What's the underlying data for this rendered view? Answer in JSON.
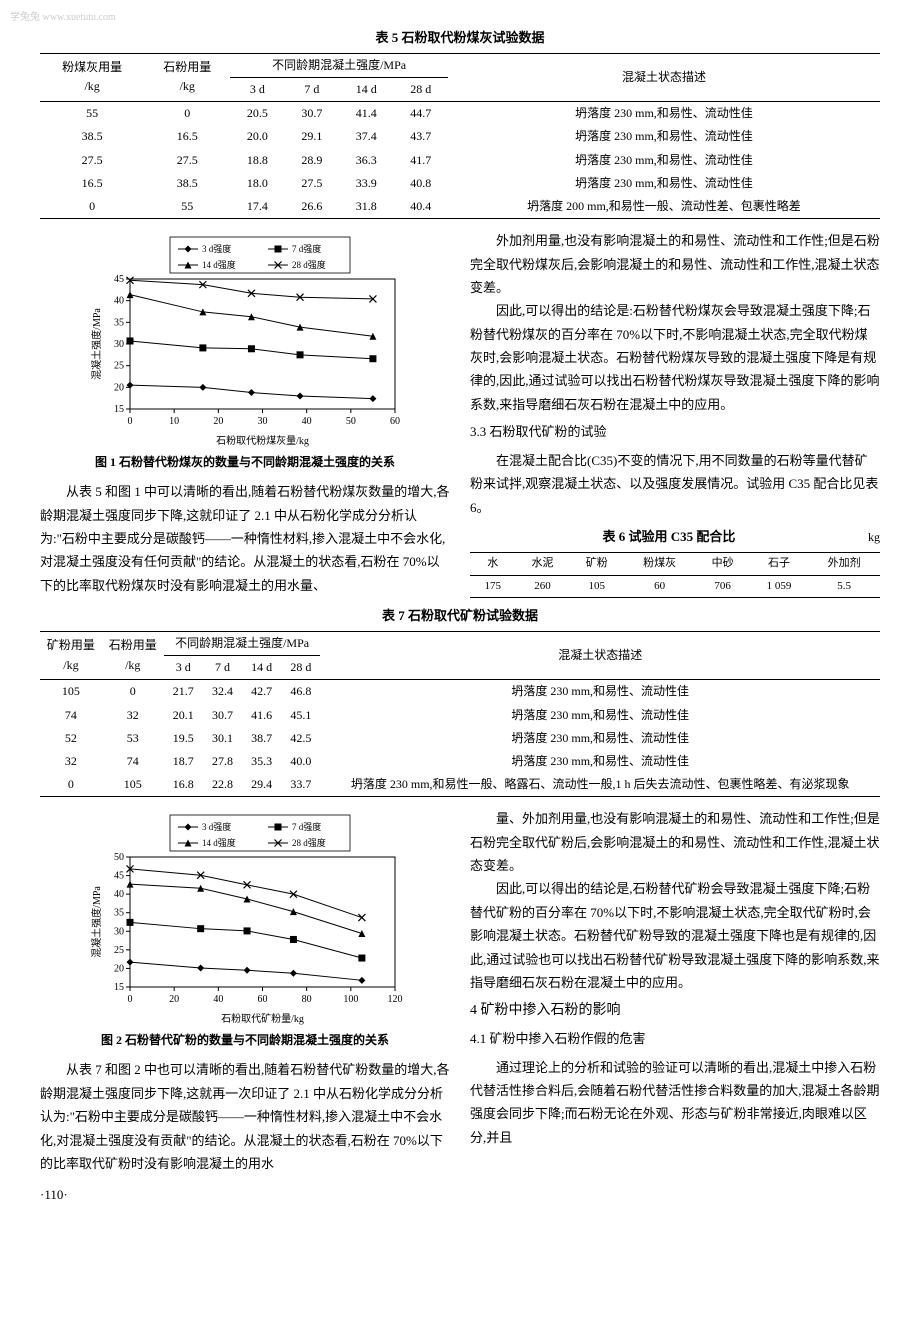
{
  "watermark": "学兔兔 www.xuetutu.com",
  "table5": {
    "title": "表 5  石粉取代粉煤灰试验数据",
    "head": {
      "c1": "粉煤灰用量\n/kg",
      "c2": "石粉用量\n/kg",
      "group": "不同龄期混凝土强度/MPa",
      "sub": [
        "3 d",
        "7 d",
        "14 d",
        "28 d"
      ],
      "c7": "混凝土状态描述"
    },
    "rows": [
      [
        "55",
        "0",
        "20.5",
        "30.7",
        "41.4",
        "44.7",
        "坍落度 230 mm,和易性、流动性佳"
      ],
      [
        "38.5",
        "16.5",
        "20.0",
        "29.1",
        "37.4",
        "43.7",
        "坍落度 230 mm,和易性、流动性佳"
      ],
      [
        "27.5",
        "27.5",
        "18.8",
        "28.9",
        "36.3",
        "41.7",
        "坍落度 230 mm,和易性、流动性佳"
      ],
      [
        "16.5",
        "38.5",
        "18.0",
        "27.5",
        "33.9",
        "40.8",
        "坍落度 230 mm,和易性、流动性佳"
      ],
      [
        "0",
        "55",
        "17.4",
        "26.6",
        "31.8",
        "40.4",
        "坍落度 200 mm,和易性一般、流动性差、包裹性略差"
      ]
    ]
  },
  "fig1": {
    "type": "line",
    "caption": "图 1  石粉替代粉煤灰的数量与不同龄期混凝土强度的关系",
    "xlabel": "石粉取代粉煤灰量/kg",
    "ylabel": "混凝土强度/MPa",
    "xlim": [
      0,
      60
    ],
    "ylim": [
      15,
      45
    ],
    "xtick_step": 10,
    "ytick_step": 5,
    "x_values": [
      0,
      16.5,
      27.5,
      38.5,
      55
    ],
    "legend_labels": [
      "3 d强度",
      "7 d强度",
      "14 d强度",
      "28 d强度"
    ],
    "series": [
      {
        "label": "3 d强度",
        "marker": "diamond",
        "y": [
          20.5,
          20.0,
          18.8,
          18.0,
          17.4
        ]
      },
      {
        "label": "7 d强度",
        "marker": "square",
        "y": [
          30.7,
          29.1,
          28.9,
          27.5,
          26.6
        ]
      },
      {
        "label": "14 d强度",
        "marker": "triangle",
        "y": [
          41.4,
          37.4,
          36.3,
          33.9,
          31.8
        ]
      },
      {
        "label": "28 d强度",
        "marker": "x",
        "y": [
          44.7,
          43.7,
          41.7,
          40.8,
          40.4
        ]
      }
    ],
    "line_color": "#000",
    "bg": "#fff",
    "font_size": 10
  },
  "para_left_1": "从表 5 和图 1 中可以清晰的看出,随着石粉替代粉煤灰数量的增大,各龄期混凝土强度同步下降,这就印证了 2.1 中从石粉化学成分分析认为:\"石粉中主要成分是碳酸钙——一种惰性材料,掺入混凝土中不会水化,对混凝土强度没有任何贡献\"的结论。从混凝土的状态看,石粉在 70%以下的比率取代粉煤灰时没有影响混凝土的用水量、",
  "para_right_1": "外加剂用量,也没有影响混凝土的和易性、流动性和工作性;但是石粉完全取代粉煤灰后,会影响混凝土的和易性、流动性和工作性,混凝土状态变差。",
  "para_right_2": "因此,可以得出的结论是:石粉替代粉煤灰会导致混凝土强度下降;石粉替代粉煤灰的百分率在 70%以下时,不影响混凝土状态,完全取代粉煤灰时,会影响混凝土状态。石粉替代粉煤灰导致的混凝土强度下降是有规律的,因此,通过试验可以找出石粉替代粉煤灰导致混凝土强度下降的影响系数,来指导磨细石灰石粉在混凝土中的应用。",
  "sec3_3": "3.3  石粉取代矿粉的试验",
  "para_right_3": "在混凝土配合比(C35)不变的情况下,用不同数量的石粉等量代替矿粉来试拌,观察混凝土状态、以及强度发展情况。试验用 C35 配合比见表 6。",
  "table6": {
    "title": "表 6  试验用 C35 配合比",
    "unit": "kg",
    "head": [
      "水",
      "水泥",
      "矿粉",
      "粉煤灰",
      "中砂",
      "石子",
      "外加剂"
    ],
    "row": [
      "175",
      "260",
      "105",
      "60",
      "706",
      "1 059",
      "5.5"
    ]
  },
  "table7": {
    "title": "表 7  石粉取代矿粉试验数据",
    "head": {
      "c1": "矿粉用量\n/kg",
      "c2": "石粉用量\n/kg",
      "group": "不同龄期混凝土强度/MPa",
      "sub": [
        "3 d",
        "7 d",
        "14 d",
        "28 d"
      ],
      "c7": "混凝土状态描述"
    },
    "rows": [
      [
        "105",
        "0",
        "21.7",
        "32.4",
        "42.7",
        "46.8",
        "坍落度 230 mm,和易性、流动性佳"
      ],
      [
        "74",
        "32",
        "20.1",
        "30.7",
        "41.6",
        "45.1",
        "坍落度 230 mm,和易性、流动性佳"
      ],
      [
        "52",
        "53",
        "19.5",
        "30.1",
        "38.7",
        "42.5",
        "坍落度 230 mm,和易性、流动性佳"
      ],
      [
        "32",
        "74",
        "18.7",
        "27.8",
        "35.3",
        "40.0",
        "坍落度 230 mm,和易性、流动性佳"
      ],
      [
        "0",
        "105",
        "16.8",
        "22.8",
        "29.4",
        "33.7",
        "坍落度 230 mm,和易性一般、略露石、流动性一般,1 h 后失去流动性、包裹性略差、有泌浆现象"
      ]
    ]
  },
  "fig2": {
    "type": "line",
    "caption": "图 2  石粉替代矿粉的数量与不同龄期混凝土强度的关系",
    "xlabel": "石粉取代矿粉量/kg",
    "ylabel": "混凝土强度/MPa",
    "xlim": [
      0,
      120
    ],
    "ylim": [
      15,
      50
    ],
    "xtick_step": 20,
    "ytick_step": 5,
    "x_values": [
      0,
      32,
      53,
      74,
      105
    ],
    "legend_labels": [
      "3 d强度",
      "7 d强度",
      "14 d强度",
      "28 d强度"
    ],
    "series": [
      {
        "label": "3 d强度",
        "marker": "diamond",
        "y": [
          21.7,
          20.1,
          19.5,
          18.7,
          16.8
        ]
      },
      {
        "label": "7 d强度",
        "marker": "square",
        "y": [
          32.4,
          30.7,
          30.1,
          27.8,
          22.8
        ]
      },
      {
        "label": "14 d强度",
        "marker": "triangle",
        "y": [
          42.7,
          41.6,
          38.7,
          35.3,
          29.4
        ]
      },
      {
        "label": "28 d强度",
        "marker": "x",
        "y": [
          46.8,
          45.1,
          42.5,
          40.0,
          33.7
        ]
      }
    ],
    "line_color": "#000",
    "bg": "#fff",
    "font_size": 10
  },
  "para_left_2": "从表 7 和图 2 中也可以清晰的看出,随着石粉替代矿粉数量的增大,各龄期混凝土强度同步下降,这就再一次印证了 2.1 中从石粉化学成分分析认为:\"石粉中主要成分是碳酸钙——一种惰性材料,掺入混凝土中不会水化,对混凝土强度没有贡献\"的结论。从混凝土的状态看,石粉在 70%以下的比率取代矿粉时没有影响混凝土的用水",
  "para_right_4": "量、外加剂用量,也没有影响混凝土的和易性、流动性和工作性;但是石粉完全取代矿粉后,会影响混凝土的和易性、流动性和工作性,混凝土状态变差。",
  "para_right_5": "因此,可以得出的结论是,石粉替代矿粉会导致混凝土强度下降;石粉替代矿粉的百分率在 70%以下时,不影响混凝土状态,完全取代矿粉时,会影响混凝土状态。石粉替代矿粉导致的混凝土强度下降也是有规律的,因此,通过试验也可以找出石粉替代矿粉导致混凝土强度下降的影响系数,来指导磨细石灰石粉在混凝土中的应用。",
  "sec4": "4  矿粉中掺入石粉的影响",
  "sec4_1": "4.1  矿粉中掺入石粉作假的危害",
  "para_right_6": "通过理论上的分析和试验的验证可以清晰的看出,混凝土中掺入石粉代替活性掺合料后,会随着石粉代替活性掺合料数量的加大,混凝土各龄期强度会同步下降;而石粉无论在外观、形态与矿粉非常接近,肉眼难以区分,并且",
  "page_num": "·110·"
}
